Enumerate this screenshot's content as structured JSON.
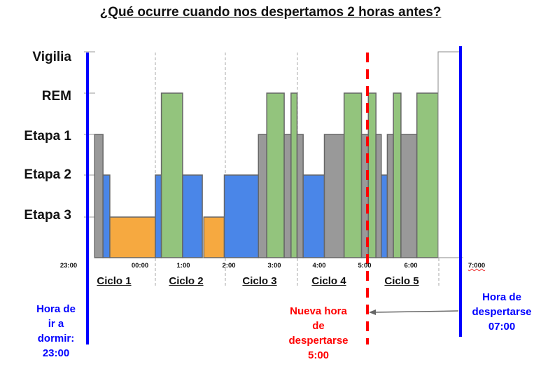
{
  "title": "¿Qué ocurre cuando nos despertamos 2 horas antes?",
  "chart_data": {
    "type": "step-area hypnogram",
    "title": "¿Qué ocurre cuando nos despertamos 2 horas antes?",
    "y_categories": [
      "Vigilia",
      "REM",
      "Etapa 1",
      "Etapa 2",
      "Etapa 3"
    ],
    "x_unit": "minutes after 23:00",
    "x_tick_labels": [
      "23:00",
      "00:00",
      "1:00",
      "2:00",
      "3:00",
      "4:00",
      "5:00",
      "6:00",
      "7:000"
    ],
    "colors": {
      "Vigilia": "#ffffff",
      "REM": "#93c47d",
      "Etapa 1": "#999999",
      "Etapa 2": "#4a86e8",
      "Etapa 3": "#f6a940"
    },
    "segments": [
      {
        "stage": "Etapa 1",
        "start": 3,
        "end": 14
      },
      {
        "stage": "Etapa 2",
        "start": 14,
        "end": 23
      },
      {
        "stage": "Etapa 3",
        "start": 23,
        "end": 83
      },
      {
        "stage": "Etapa 2",
        "start": 83,
        "end": 91
      },
      {
        "stage": "REM",
        "start": 91,
        "end": 119
      },
      {
        "stage": "Etapa 2",
        "start": 119,
        "end": 145
      },
      {
        "stage": "Etapa 3",
        "start": 147,
        "end": 174
      },
      {
        "stage": "Etapa 2",
        "start": 174,
        "end": 219
      },
      {
        "stage": "Etapa 1",
        "start": 219,
        "end": 230
      },
      {
        "stage": "REM",
        "start": 230,
        "end": 253
      },
      {
        "stage": "Etapa 1",
        "start": 253,
        "end": 262
      },
      {
        "stage": "REM",
        "start": 262,
        "end": 270
      },
      {
        "stage": "Etapa 1",
        "start": 270,
        "end": 278
      },
      {
        "stage": "Etapa 2",
        "start": 278,
        "end": 306
      },
      {
        "stage": "Etapa 1",
        "start": 306,
        "end": 332
      },
      {
        "stage": "REM",
        "start": 332,
        "end": 355
      },
      {
        "stage": "Etapa 1",
        "start": 355,
        "end": 364
      },
      {
        "stage": "REM",
        "start": 364,
        "end": 374
      },
      {
        "stage": "Etapa 1",
        "start": 374,
        "end": 381
      },
      {
        "stage": "Etapa 2",
        "start": 381,
        "end": 389
      },
      {
        "stage": "Etapa 1",
        "start": 389,
        "end": 397
      },
      {
        "stage": "REM",
        "start": 397,
        "end": 407
      },
      {
        "stage": "Etapa 1",
        "start": 407,
        "end": 428
      },
      {
        "stage": "REM",
        "start": 428,
        "end": 456
      },
      {
        "stage": "Vigilia",
        "start": 456,
        "end": 485
      }
    ],
    "cycles": [
      "Ciclo 1",
      "Ciclo 2",
      "Ciclo 3",
      "Ciclo 4",
      "Ciclo 5"
    ],
    "markers": {
      "bedtime": {
        "lines": [
          "Hora de",
          "ir a",
          "dormir:",
          "23:00"
        ],
        "color": "#0000ff"
      },
      "new_wake": {
        "lines": [
          "Nueva hora",
          "de",
          "despertarse",
          "5:00"
        ],
        "color": "#ff0000"
      },
      "wake": {
        "lines": [
          "Hora de",
          "despertarse",
          "07:00"
        ],
        "color": "#0000ff"
      }
    }
  }
}
